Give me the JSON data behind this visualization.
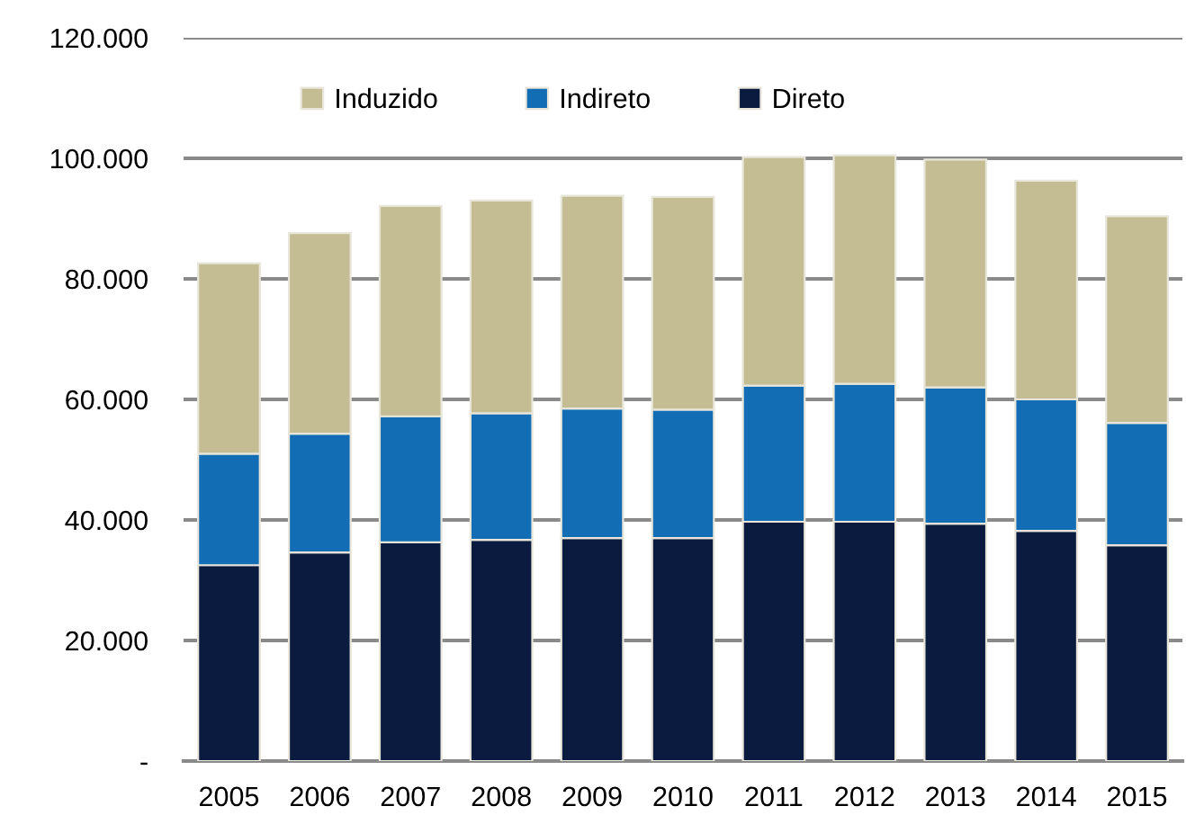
{
  "chart_data": {
    "type": "bar",
    "stacked": true,
    "categories": [
      "2005",
      "2006",
      "2007",
      "2008",
      "2009",
      "2010",
      "2011",
      "2012",
      "2013",
      "2014",
      "2015"
    ],
    "series": [
      {
        "name": "Direto",
        "color": "#0a1b3f",
        "values": [
          32500,
          34600,
          36300,
          36700,
          37000,
          37000,
          39700,
          39700,
          39400,
          38200,
          35800
        ]
      },
      {
        "name": "Indireto",
        "color": "#126db5",
        "values": [
          18500,
          19700,
          20900,
          21000,
          21500,
          21300,
          22600,
          22900,
          22600,
          21800,
          20300
        ]
      },
      {
        "name": "Induzido",
        "color": "#c4bd94",
        "values": [
          31600,
          33300,
          34900,
          35300,
          35300,
          35300,
          37900,
          37900,
          37800,
          36300,
          34300
        ]
      }
    ],
    "ylim": [
      0,
      120000
    ],
    "yticks": [
      {
        "value": 0,
        "label": "-"
      },
      {
        "value": 20000,
        "label": "20.000"
      },
      {
        "value": 40000,
        "label": "40.000"
      },
      {
        "value": 60000,
        "label": "60.000"
      },
      {
        "value": 80000,
        "label": "80.000"
      },
      {
        "value": 100000,
        "label": "100.000"
      },
      {
        "value": 120000,
        "label": "120.000"
      }
    ],
    "grid": "y",
    "legend": "top"
  }
}
